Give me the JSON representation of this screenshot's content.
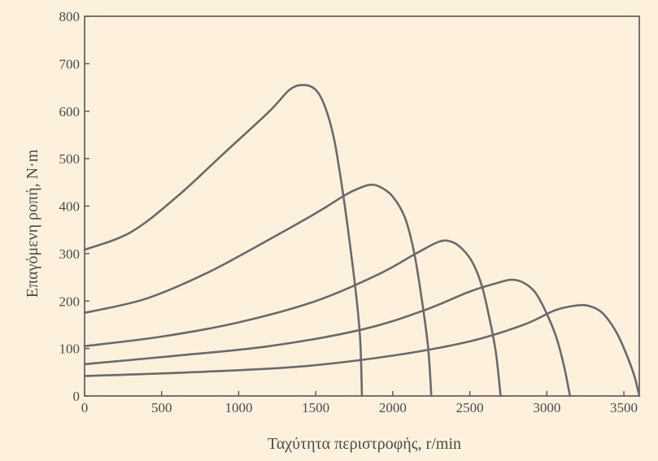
{
  "chart_data": {
    "type": "line",
    "title": "",
    "xlabel": "Ταχύτητα περιστροφής, r/min",
    "ylabel": "Επαγόμενη ροπή, N·m",
    "xlim": [
      0,
      3600
    ],
    "ylim": [
      0,
      800
    ],
    "xticks": [
      0,
      500,
      1000,
      1500,
      2000,
      2500,
      3000,
      3500
    ],
    "yticks": [
      0,
      100,
      200,
      300,
      400,
      500,
      600,
      700,
      800
    ],
    "grid": false,
    "legend": "none",
    "series": [
      {
        "sync_speed": 1800,
        "points": [
          [
            0,
            308
          ],
          [
            300,
            345
          ],
          [
            600,
            420
          ],
          [
            900,
            510
          ],
          [
            1200,
            600
          ],
          [
            1330,
            645
          ],
          [
            1420,
            655
          ],
          [
            1500,
            645
          ],
          [
            1560,
            610
          ],
          [
            1620,
            540
          ],
          [
            1680,
            420
          ],
          [
            1730,
            300
          ],
          [
            1770,
            190
          ],
          [
            1790,
            110
          ],
          [
            1800,
            0
          ]
        ]
      },
      {
        "sync_speed": 2250,
        "points": [
          [
            0,
            175
          ],
          [
            400,
            205
          ],
          [
            800,
            260
          ],
          [
            1200,
            330
          ],
          [
            1500,
            385
          ],
          [
            1700,
            425
          ],
          [
            1800,
            440
          ],
          [
            1860,
            445
          ],
          [
            1920,
            440
          ],
          [
            2000,
            420
          ],
          [
            2080,
            375
          ],
          [
            2140,
            300
          ],
          [
            2190,
            200
          ],
          [
            2230,
            100
          ],
          [
            2250,
            0
          ]
        ]
      },
      {
        "sync_speed": 2700,
        "points": [
          [
            0,
            105
          ],
          [
            500,
            125
          ],
          [
            1000,
            155
          ],
          [
            1500,
            200
          ],
          [
            1900,
            255
          ],
          [
            2150,
            300
          ],
          [
            2300,
            325
          ],
          [
            2380,
            325
          ],
          [
            2450,
            310
          ],
          [
            2520,
            280
          ],
          [
            2580,
            230
          ],
          [
            2630,
            160
          ],
          [
            2670,
            90
          ],
          [
            2700,
            0
          ]
        ]
      },
      {
        "sync_speed": 3150,
        "points": [
          [
            0,
            67
          ],
          [
            600,
            85
          ],
          [
            1200,
            105
          ],
          [
            1800,
            140
          ],
          [
            2200,
            180
          ],
          [
            2500,
            220
          ],
          [
            2700,
            240
          ],
          [
            2770,
            245
          ],
          [
            2840,
            240
          ],
          [
            2920,
            220
          ],
          [
            2990,
            180
          ],
          [
            3060,
            125
          ],
          [
            3110,
            65
          ],
          [
            3150,
            0
          ]
        ]
      },
      {
        "sync_speed": 3600,
        "points": [
          [
            0,
            42
          ],
          [
            700,
            50
          ],
          [
            1400,
            62
          ],
          [
            2000,
            85
          ],
          [
            2500,
            115
          ],
          [
            2850,
            150
          ],
          [
            3050,
            180
          ],
          [
            3180,
            190
          ],
          [
            3270,
            190
          ],
          [
            3360,
            175
          ],
          [
            3450,
            135
          ],
          [
            3520,
            85
          ],
          [
            3570,
            40
          ],
          [
            3600,
            0
          ]
        ]
      }
    ]
  }
}
